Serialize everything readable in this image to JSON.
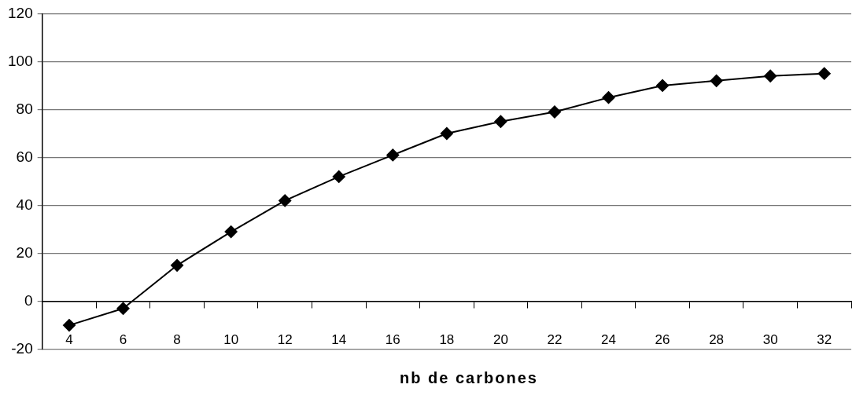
{
  "chart_data": {
    "type": "line",
    "xlabel": "nb de carbones",
    "categories": [
      "4",
      "6",
      "8",
      "10",
      "12",
      "14",
      "16",
      "18",
      "20",
      "22",
      "24",
      "26",
      "28",
      "30",
      "32"
    ],
    "series": [
      {
        "color": "#000000",
        "values": [
          -10,
          -3,
          15,
          29,
          42,
          52,
          61,
          70,
          75,
          79,
          85,
          90,
          92,
          94,
          95
        ]
      }
    ],
    "ylim": [
      -20,
      120
    ],
    "yticks": [
      -20,
      0,
      20,
      40,
      60,
      80,
      100,
      120
    ],
    "grid": "y",
    "legend": false,
    "marker": "diamond",
    "line_style": "solid"
  }
}
